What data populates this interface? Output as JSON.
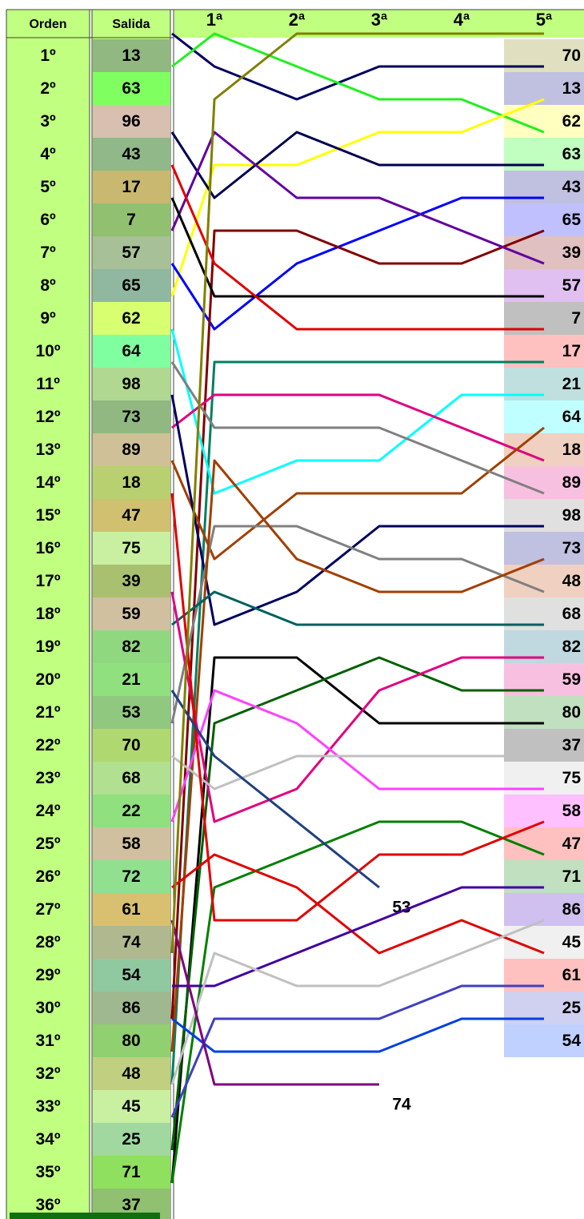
{
  "table": {
    "headers": [
      "Orden",
      "Salida"
    ],
    "rows": [
      {
        "orden": "1º",
        "salida": "13",
        "color": "#90b880"
      },
      {
        "orden": "2º",
        "salida": "63",
        "color": "#80ff60"
      },
      {
        "orden": "3º",
        "salida": "96",
        "color": "#d8c0b0"
      },
      {
        "orden": "4º",
        "salida": "43",
        "color": "#90b888"
      },
      {
        "orden": "5º",
        "salida": "17",
        "color": "#c8b870"
      },
      {
        "orden": "6º",
        "salida": "7",
        "color": "#90c070"
      },
      {
        "orden": "7º",
        "salida": "57",
        "color": "#a8c098"
      },
      {
        "orden": "8º",
        "salida": "65",
        "color": "#90b8a0"
      },
      {
        "orden": "9º",
        "salida": "62",
        "color": "#d8ff70"
      },
      {
        "orden": "10º",
        "salida": "64",
        "color": "#80ffa0"
      },
      {
        "orden": "11º",
        "salida": "98",
        "color": "#b0d890"
      },
      {
        "orden": "12º",
        "salida": "73",
        "color": "#90b880"
      },
      {
        "orden": "13º",
        "salida": "89",
        "color": "#d0c098"
      },
      {
        "orden": "14º",
        "salida": "18",
        "color": "#b8d070"
      },
      {
        "orden": "15º",
        "salida": "47",
        "color": "#d0c070"
      },
      {
        "orden": "16º",
        "salida": "75",
        "color": "#c8f0a0"
      },
      {
        "orden": "17º",
        "salida": "39",
        "color": "#a8c070"
      },
      {
        "orden": "18º",
        "salida": "59",
        "color": "#d0c0a0"
      },
      {
        "orden": "19º",
        "salida": "82",
        "color": "#90d880"
      },
      {
        "orden": "20º",
        "salida": "21",
        "color": "#90e080"
      },
      {
        "orden": "21º",
        "salida": "53",
        "color": "#90c880"
      },
      {
        "orden": "22º",
        "salida": "70",
        "color": "#b0d870"
      },
      {
        "orden": "23º",
        "salida": "68",
        "color": "#b0e090"
      },
      {
        "orden": "24º",
        "salida": "22",
        "color": "#90e080"
      },
      {
        "orden": "25º",
        "salida": "58",
        "color": "#d0c0a0"
      },
      {
        "orden": "26º",
        "salida": "72",
        "color": "#90e090"
      },
      {
        "orden": "27º",
        "salida": "61",
        "color": "#d8c070"
      },
      {
        "orden": "28º",
        "salida": "74",
        "color": "#b0b890"
      },
      {
        "orden": "29º",
        "salida": "54",
        "color": "#90c8a0"
      },
      {
        "orden": "30º",
        "salida": "86",
        "color": "#a0b890"
      },
      {
        "orden": "31º",
        "salida": "80",
        "color": "#90d070"
      },
      {
        "orden": "32º",
        "salida": "48",
        "color": "#c0d080"
      },
      {
        "orden": "33º",
        "salida": "45",
        "color": "#c8f0a0"
      },
      {
        "orden": "34º",
        "salida": "25",
        "color": "#a0d8a0"
      },
      {
        "orden": "35º",
        "salida": "71",
        "color": "#90e060"
      },
      {
        "orden": "36º",
        "salida": "37",
        "color": "#90c070"
      }
    ]
  },
  "chart_data": {
    "type": "line",
    "categories": [
      null,
      "1ª",
      "2ª",
      "3ª",
      "4ª",
      "5ª"
    ],
    "ylim": [
      0,
      36
    ],
    "series": [
      {
        "color": "#000060",
        "values": [
          0,
          1,
          2,
          1,
          1,
          1
        ]
      },
      {
        "color": "#20f020",
        "values": [
          1,
          0,
          1,
          2,
          2,
          3
        ]
      },
      {
        "color": "#ffff00",
        "values": [
          8,
          4,
          4,
          3,
          3,
          2
        ]
      },
      {
        "color": "#000050",
        "values": [
          3,
          5,
          3,
          4,
          4,
          4
        ]
      },
      {
        "color": "#0000ff",
        "values": [
          7,
          9,
          7,
          6,
          5,
          5
        ]
      },
      {
        "color": "#800000",
        "values": [
          30,
          6,
          6,
          7,
          7,
          6
        ]
      },
      {
        "color": "#6000a0",
        "values": [
          6,
          3,
          5,
          5,
          6,
          7
        ]
      },
      {
        "color": "#000000",
        "values": [
          5,
          8,
          8,
          8,
          8,
          8
        ]
      },
      {
        "color": "#e00000",
        "values": [
          4,
          7,
          9,
          9,
          9,
          9
        ]
      },
      {
        "color": "#008060",
        "values": [
          32,
          10,
          10,
          10,
          10,
          10
        ]
      },
      {
        "color": "#00ffff",
        "values": [
          9,
          14,
          13,
          13,
          11,
          11
        ]
      },
      {
        "color": "#e0007f",
        "values": [
          12,
          11,
          11,
          11,
          12,
          13
        ]
      },
      {
        "color": "#a04000",
        "values": [
          13,
          16,
          14,
          14,
          14,
          12
        ]
      },
      {
        "color": "#808080",
        "values": [
          10,
          12,
          12,
          12,
          13,
          14
        ]
      },
      {
        "color": "#000060",
        "values": [
          11,
          18,
          17,
          15,
          15,
          15
        ]
      },
      {
        "color": "#808080",
        "values": [
          21,
          15,
          15,
          16,
          16,
          17
        ]
      },
      {
        "color": "#a04000",
        "values": [
          31,
          13,
          16,
          17,
          17,
          16
        ]
      },
      {
        "color": "#006060",
        "values": [
          18,
          17,
          18,
          18,
          18,
          18
        ]
      },
      {
        "color": "#000000",
        "values": [
          35,
          19,
          19,
          21,
          21,
          21
        ]
      },
      {
        "color": "#006000",
        "values": [
          34,
          21,
          20,
          19,
          20,
          20
        ]
      },
      {
        "color": "#e0007f",
        "values": [
          17,
          24,
          23,
          20,
          19,
          19
        ]
      },
      {
        "color": "#ff40ff",
        "values": [
          24,
          20,
          21,
          23,
          23,
          23
        ]
      },
      {
        "color": "#c0c0c0",
        "values": [
          22,
          23,
          22,
          22,
          22,
          22
        ]
      },
      {
        "color": "#008000",
        "values": [
          35,
          26,
          25,
          24,
          24,
          25
        ]
      },
      {
        "color": "#e00000",
        "values": [
          26,
          25,
          26,
          28,
          27,
          28
        ]
      },
      {
        "color": "#e00000",
        "values": [
          14,
          27,
          27,
          25,
          25,
          24
        ]
      },
      {
        "color": "#204080",
        "values": [
          20,
          22,
          24,
          26,
          null,
          null
        ],
        "end_label": "53"
      },
      {
        "color": "#4000a0",
        "values": [
          29,
          29,
          28,
          27,
          26,
          26
        ]
      },
      {
        "color": "#c0c0c0",
        "values": [
          32,
          28,
          29,
          29,
          28,
          27
        ]
      },
      {
        "color": "#4040c0",
        "values": [
          33,
          30,
          30,
          30,
          29,
          29
        ]
      },
      {
        "color": "#0040e0",
        "values": [
          30,
          31,
          31,
          31,
          30,
          30
        ]
      },
      {
        "color": "#800080",
        "values": [
          27,
          32,
          32,
          32,
          null,
          null
        ],
        "end_label": "74"
      },
      {
        "color": "#808000",
        "values": [
          28,
          2,
          0,
          0,
          0,
          0
        ]
      }
    ],
    "end_labels": [
      {
        "text": "70",
        "color": "#e0e0c0"
      },
      {
        "text": "13",
        "color": "#c0c0e0"
      },
      {
        "text": "62",
        "color": "#ffffc0"
      },
      {
        "text": "63",
        "color": "#c0ffc0"
      },
      {
        "text": "43",
        "color": "#c0c0e0"
      },
      {
        "text": "65",
        "color": "#c0c0ff"
      },
      {
        "text": "39",
        "color": "#e0c0c0"
      },
      {
        "text": "57",
        "color": "#e0c0f0"
      },
      {
        "text": "7",
        "color": "#c0c0c0"
      },
      {
        "text": "17",
        "color": "#ffc0c0"
      },
      {
        "text": "21",
        "color": "#c0e0e0"
      },
      {
        "text": "64",
        "color": "#c0ffff"
      },
      {
        "text": "18",
        "color": "#f0d0c0"
      },
      {
        "text": "89",
        "color": "#f8c0e0"
      },
      {
        "text": "98",
        "color": "#e0e0e0"
      },
      {
        "text": "73",
        "color": "#c0c0e0"
      },
      {
        "text": "48",
        "color": "#f0d0c0"
      },
      {
        "text": "68",
        "color": "#e0e0e0"
      },
      {
        "text": "82",
        "color": "#c0d8e0"
      },
      {
        "text": "59",
        "color": "#f8c0e0"
      },
      {
        "text": "80",
        "color": "#c0e0c0"
      },
      {
        "text": "37",
        "color": "#c0c0c0"
      },
      {
        "text": "75",
        "color": "#f0f0f0"
      },
      {
        "text": "58",
        "color": "#ffc0ff"
      },
      {
        "text": "47",
        "color": "#ffc0c0"
      },
      {
        "text": "71",
        "color": "#c0e0c0"
      },
      {
        "text": "86",
        "color": "#d0c0f0"
      },
      {
        "text": "45",
        "color": "#f0f0f0"
      },
      {
        "text": "61",
        "color": "#ffc0c0"
      },
      {
        "text": "25",
        "color": "#d0d0f0"
      },
      {
        "text": "54",
        "color": "#c0d0ff"
      }
    ]
  }
}
